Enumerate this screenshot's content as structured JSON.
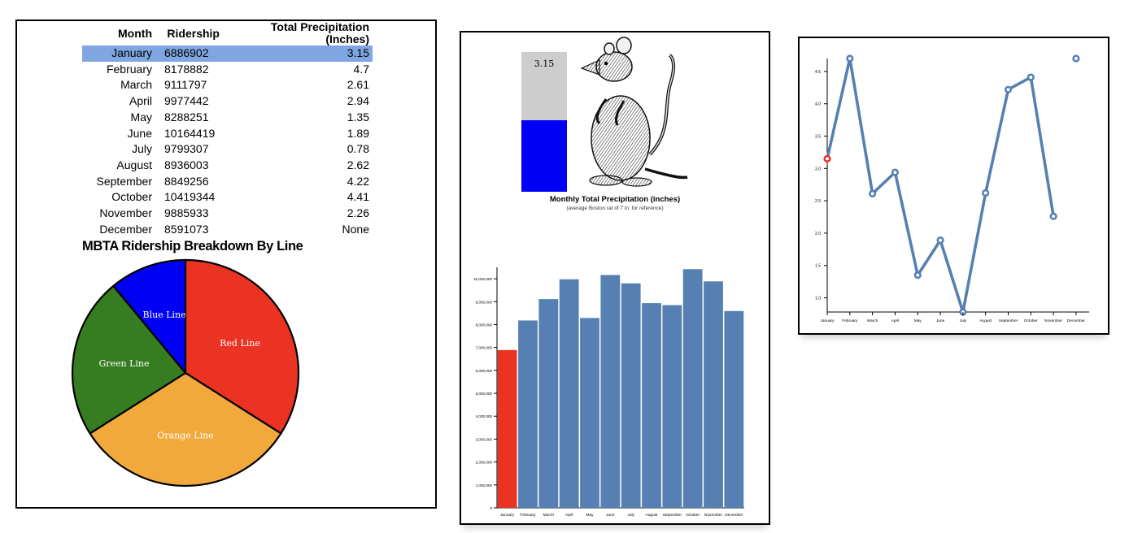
{
  "table": {
    "headers": [
      "Month",
      "Ridership",
      "Total Precipitation (Inches)"
    ],
    "selected_index": 0,
    "selected_color": "#7fa6e0",
    "rows": [
      {
        "month": "January",
        "ridership": "6886902",
        "precip": "3.15"
      },
      {
        "month": "February",
        "ridership": "8178882",
        "precip": "4.7"
      },
      {
        "month": "March",
        "ridership": "9111797",
        "precip": "2.61"
      },
      {
        "month": "April",
        "ridership": "9977442",
        "precip": "2.94"
      },
      {
        "month": "May",
        "ridership": "8288251",
        "precip": "1.35"
      },
      {
        "month": "June",
        "ridership": "10164419",
        "precip": "1.89"
      },
      {
        "month": "July",
        "ridership": "9799307",
        "precip": "0.78"
      },
      {
        "month": "August",
        "ridership": "8936003",
        "precip": "2.62"
      },
      {
        "month": "September",
        "ridership": "8849256",
        "precip": "4.22"
      },
      {
        "month": "October",
        "ridership": "10419344",
        "precip": "4.41"
      },
      {
        "month": "November",
        "ridership": "9885933",
        "precip": "2.26"
      },
      {
        "month": "December",
        "ridership": "8591073",
        "precip": "None"
      }
    ]
  },
  "gauge": {
    "value_label": "3.15",
    "title": "Monthly Total Precipitation (inches)",
    "subtitle": "(average Boston rat of 7 in. for reference)"
  },
  "chart_data": [
    {
      "type": "pie",
      "title": "MBTA Ridership Breakdown By Line",
      "slices": [
        {
          "label": "Red Line",
          "value": 34,
          "color": "#ea3323"
        },
        {
          "label": "Orange Line",
          "value": 32,
          "color": "#f1a93c"
        },
        {
          "label": "Green Line",
          "value": 23,
          "color": "#367c21"
        },
        {
          "label": "Blue Line",
          "value": 11,
          "color": "#0000f5"
        }
      ]
    },
    {
      "type": "bar",
      "categories": [
        "January",
        "February",
        "March",
        "April",
        "May",
        "June",
        "July",
        "August",
        "September",
        "October",
        "November",
        "December"
      ],
      "values": [
        6886902,
        8178882,
        9111797,
        9977442,
        8288251,
        10164419,
        9799307,
        8936003,
        8849256,
        10419344,
        9885933,
        8591073
      ],
      "highlight_index": 0,
      "highlight_color": "#ea3323",
      "bar_color": "#5680b1",
      "ylim": [
        0,
        10500000
      ],
      "yticks": [
        "0",
        "1,000,000",
        "2,000,000",
        "3,000,000",
        "4,000,000",
        "5,000,000",
        "6,000,000",
        "7,000,000",
        "8,000,000",
        "9,000,000",
        "10,000,000"
      ]
    },
    {
      "type": "line",
      "categories": [
        "January",
        "February",
        "March",
        "April",
        "May",
        "June",
        "July",
        "August",
        "September",
        "October",
        "November",
        "December"
      ],
      "values": [
        3.15,
        4.7,
        2.61,
        2.94,
        1.35,
        1.89,
        0.78,
        2.62,
        4.22,
        4.41,
        2.26,
        4.7
      ],
      "connected_count": 11,
      "highlight_index": 0,
      "highlight_color": "#ea3323",
      "line_color": "#5680b1",
      "ylim": [
        0.78,
        4.7
      ],
      "yticks": [
        "1.0",
        "1.5",
        "2.0",
        "2.5",
        "3.0",
        "3.5",
        "4.0",
        "4.5"
      ]
    }
  ]
}
